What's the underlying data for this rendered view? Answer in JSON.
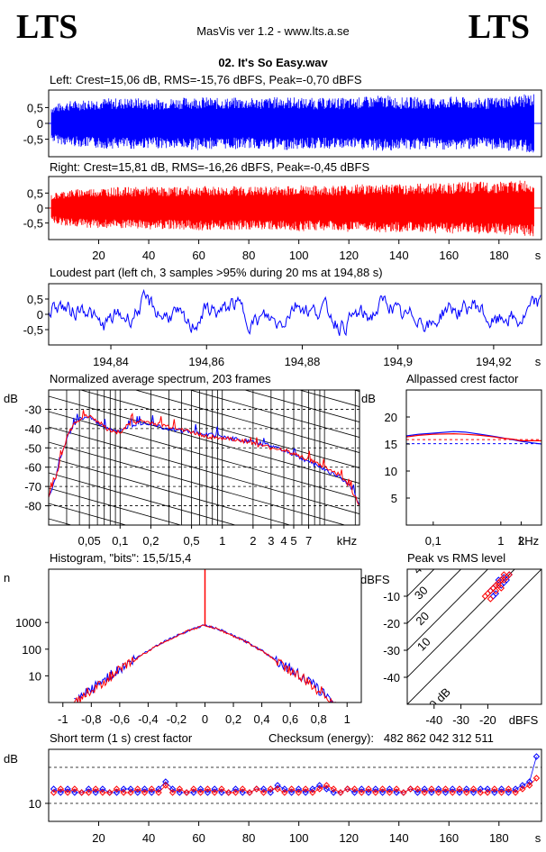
{
  "header": {
    "logo_left": "LTS",
    "logo_right": "LTS",
    "app_title": "MasVis ver 1.2 - www.lts.a.se",
    "file_name": "02. It's So Easy.wav"
  },
  "colors": {
    "left": "#0000ff",
    "right": "#ff0000",
    "grid": "#000000"
  },
  "chart_data": [
    {
      "id": "left_wave",
      "type": "area",
      "title": "Left: Crest=15,06 dB, RMS=-15,76 dBFS, Peak=-0,70 dBFS",
      "yticks": [
        "0,5",
        "0",
        "-0,5"
      ],
      "ytick_values": [
        0.5,
        0,
        -0.5
      ],
      "ylim": [
        -1,
        1
      ],
      "xlim": [
        0,
        197
      ],
      "series": [
        {
          "name": "Left",
          "envelope": [
            0.55,
            0.7,
            0.75,
            0.8,
            0.8,
            0.82,
            0.78,
            0.8,
            0.82,
            0.85,
            0.8,
            0.82,
            0.8,
            0.82,
            0.85,
            0.82,
            0.8,
            0.82,
            0.8,
            0.85,
            0.9,
            0.82,
            0.85,
            0.8,
            0.85,
            0.82,
            0.8,
            0.85,
            0.9,
            0.95
          ]
        }
      ]
    },
    {
      "id": "right_wave",
      "type": "area",
      "title": "Right: Crest=15,81 dB, RMS=-16,26 dBFS, Peak=-0,45 dBFS",
      "yticks": [
        "0,5",
        "0",
        "-0,5"
      ],
      "ytick_values": [
        0.5,
        0,
        -0.5
      ],
      "ylim": [
        -1,
        1
      ],
      "xlim": [
        0,
        197
      ],
      "xticks": [
        "20",
        "40",
        "60",
        "80",
        "100",
        "120",
        "140",
        "160",
        "180"
      ],
      "xtick_values": [
        20,
        40,
        60,
        80,
        100,
        120,
        140,
        160,
        180
      ],
      "xunit": "s",
      "series": [
        {
          "name": "Right",
          "envelope": [
            0.45,
            0.6,
            0.65,
            0.68,
            0.7,
            0.7,
            0.72,
            0.7,
            0.72,
            0.75,
            0.72,
            0.74,
            0.72,
            0.72,
            0.75,
            0.78,
            0.75,
            0.76,
            0.8,
            0.8,
            0.82,
            0.8,
            0.82,
            0.85,
            0.85,
            0.88,
            0.88,
            0.9,
            0.92,
            0.95
          ]
        }
      ]
    },
    {
      "id": "loudest",
      "type": "line",
      "title": "Loudest part (left  ch, 3 samples >95% during 20 ms at 194,88 s)",
      "yticks": [
        "0,5",
        "0",
        "-0,5"
      ],
      "ytick_values": [
        0.5,
        0,
        -0.5
      ],
      "ylim": [
        -1,
        1
      ],
      "xlim": [
        194.827,
        194.93
      ],
      "xticks": [
        "194,84",
        "194,86",
        "194,88",
        "194,9",
        "194,92"
      ],
      "xtick_values": [
        194.84,
        194.86,
        194.88,
        194.9,
        194.92
      ],
      "xunit": "s"
    },
    {
      "id": "spectrum",
      "type": "line",
      "title": "Normalized average spectrum, 203 frames",
      "ylabel": "dB",
      "ylim": [
        -90,
        -20
      ],
      "yticks": [
        "-30",
        "-40",
        "-50",
        "-60",
        "-70",
        "-80"
      ],
      "ytick_values": [
        -30,
        -40,
        -50,
        -60,
        -70,
        -80
      ],
      "xlim_khz": [
        0.02,
        22
      ],
      "xscale": "log",
      "xticks": [
        "0,05",
        "0,1",
        "0,2",
        "0,5",
        "1",
        "2",
        "3",
        "4",
        "5",
        "7"
      ],
      "xtick_values": [
        0.05,
        0.1,
        0.2,
        0.5,
        1,
        2,
        3,
        4,
        5,
        7
      ],
      "xunit": "kHz",
      "x": [
        0.02,
        0.022,
        0.025,
        0.03,
        0.035,
        0.04,
        0.05,
        0.06,
        0.07,
        0.08,
        0.1,
        0.12,
        0.15,
        0.2,
        0.25,
        0.3,
        0.4,
        0.5,
        0.7,
        1,
        1.5,
        2,
        3,
        4,
        5,
        7,
        10,
        14,
        18,
        22
      ],
      "series": [
        {
          "name": "L",
          "values": [
            -75,
            -70,
            -60,
            -45,
            -38,
            -35,
            -34,
            -37,
            -39,
            -40,
            -42,
            -39,
            -37,
            -37,
            -39,
            -40,
            -41,
            -42,
            -43,
            -44,
            -46,
            -47,
            -49,
            -51,
            -54,
            -57,
            -61,
            -65,
            -70,
            -79
          ]
        },
        {
          "name": "R",
          "values": [
            -75,
            -70,
            -60,
            -45,
            -38,
            -35,
            -33,
            -36,
            -39,
            -41,
            -42,
            -38,
            -36,
            -37,
            -38,
            -39,
            -40,
            -42,
            -44,
            -45,
            -46,
            -48,
            -50,
            -51,
            -53,
            -56,
            -60,
            -64,
            -71,
            -80
          ]
        }
      ]
    },
    {
      "id": "allpass",
      "type": "line",
      "title": "Allpassed crest factor",
      "ylabel": "dB",
      "ylim": [
        0,
        25
      ],
      "yticks": [
        "20",
        "15",
        "10",
        "5"
      ],
      "ytick_values": [
        20,
        15,
        10,
        5
      ],
      "xlim_khz": [
        0.04,
        4
      ],
      "xscale": "log",
      "xticks": [
        "0,1",
        "1",
        "2"
      ],
      "xtick_values": [
        0.1,
        1,
        2
      ],
      "xunit": "kHz",
      "x": [
        0.04,
        0.06,
        0.1,
        0.2,
        0.3,
        0.5,
        0.8,
        1,
        1.5,
        2,
        3,
        4
      ],
      "ref_lines": [
        15.06,
        15.81
      ],
      "series": [
        {
          "name": "L",
          "values": [
            16.5,
            16.8,
            17.0,
            17.3,
            17.2,
            16.8,
            16.4,
            16.2,
            15.8,
            15.5,
            15.2,
            15.0
          ]
        },
        {
          "name": "R",
          "values": [
            16.3,
            16.6,
            16.8,
            16.9,
            16.8,
            16.6,
            16.3,
            16.1,
            15.9,
            15.6,
            15.6,
            15.6
          ]
        }
      ]
    },
    {
      "id": "histogram",
      "type": "line",
      "title": "Histogram, \"bits\": 15,5/15,4",
      "ylabel": "n",
      "yscale": "log",
      "ylim": [
        1,
        100000
      ],
      "yticks": [
        "1000",
        "100",
        "10"
      ],
      "ytick_values": [
        1000,
        100,
        10
      ],
      "xlim": [
        -1.1,
        1.1
      ],
      "xticks": [
        "-1",
        "-0,8",
        "-0,6",
        "-0,4",
        "-0,2",
        "0",
        "0,2",
        "0,4",
        "0,6",
        "0,8",
        "1"
      ],
      "xtick_values": [
        -1,
        -0.8,
        -0.6,
        -0.4,
        -0.2,
        0,
        0.2,
        0.4,
        0.6,
        0.8,
        1
      ],
      "x": [
        -0.9,
        -0.85,
        -0.8,
        -0.75,
        -0.7,
        -0.6,
        -0.5,
        -0.4,
        -0.3,
        -0.2,
        -0.1,
        0,
        0.1,
        0.2,
        0.3,
        0.4,
        0.5,
        0.6,
        0.7,
        0.75,
        0.8,
        0.85,
        0.9
      ],
      "series": [
        {
          "name": "L",
          "values": [
            1,
            2,
            3,
            5,
            8,
            18,
            40,
            90,
            180,
            320,
            550,
            800,
            550,
            320,
            180,
            90,
            40,
            18,
            8,
            5,
            3,
            2,
            1
          ]
        },
        {
          "name": "R",
          "values": [
            1,
            2,
            3,
            4,
            7,
            16,
            38,
            85,
            175,
            310,
            540,
            790,
            540,
            310,
            175,
            85,
            38,
            16,
            7,
            4,
            3,
            2,
            1
          ]
        }
      ]
    },
    {
      "id": "peak_rms",
      "type": "scatter",
      "title": "Peak vs RMS level",
      "ylabel": "dBFS",
      "xlabel": "dBFS",
      "xlim": [
        -50,
        0
      ],
      "ylim": [
        -50,
        0
      ],
      "yticks": [
        "-10",
        "-20",
        "-30",
        "-40"
      ],
      "ytick_values": [
        -10,
        -20,
        -30,
        -40
      ],
      "xticks": [
        "-40",
        "-30",
        "-20"
      ],
      "xtick_values": [
        -40,
        -30,
        -20
      ],
      "crest_lines": [
        0,
        10,
        20,
        30,
        40
      ],
      "crest_labels": [
        "0 dB",
        "10",
        "20",
        "30",
        "40"
      ],
      "series": [
        {
          "name": "L",
          "x": [
            -19,
            -18,
            -17,
            -16,
            -15,
            -14,
            -13,
            -12,
            -16,
            -15,
            -14,
            -17,
            -18,
            -13
          ],
          "y": [
            -8,
            -7,
            -6,
            -5,
            -4,
            -3,
            -3,
            -2,
            -4,
            -6,
            -5,
            -9,
            -10,
            -4
          ]
        },
        {
          "name": "R",
          "x": [
            -20,
            -19,
            -18,
            -17,
            -16,
            -15,
            -14,
            -13,
            -12,
            -16,
            -14,
            -17,
            -19,
            -15,
            -21
          ],
          "y": [
            -9,
            -8,
            -7,
            -6,
            -5,
            -4,
            -4,
            -3,
            -2,
            -6,
            -2,
            -8,
            -11,
            -7,
            -10
          ]
        }
      ]
    },
    {
      "id": "crest_short",
      "type": "scatter",
      "title": "Short term (1 s) crest factor",
      "ylabel": "dB",
      "ylim": [
        5,
        25
      ],
      "yticks": [
        "10"
      ],
      "ytick_values": [
        10
      ],
      "ref_lines": [
        10,
        20
      ],
      "xlim": [
        0,
        197
      ],
      "xticks": [
        "20",
        "40",
        "60",
        "80",
        "100",
        "120",
        "140",
        "160",
        "180"
      ],
      "xtick_values": [
        20,
        40,
        60,
        80,
        100,
        120,
        140,
        160,
        180
      ],
      "xunit": "s",
      "series": [
        {
          "name": "L",
          "values": [
            14,
            13,
            14,
            13,
            13,
            14,
            13,
            14,
            13,
            13,
            14,
            14,
            13,
            14,
            13,
            14,
            16,
            14,
            13,
            13,
            13,
            14,
            13,
            14,
            13,
            13,
            14,
            13,
            13,
            14,
            14,
            13,
            15,
            14,
            13,
            14,
            13,
            14,
            15,
            14,
            13,
            13,
            14,
            13,
            14,
            13,
            14,
            13,
            14,
            13,
            13,
            14,
            13,
            14,
            13,
            14,
            13,
            14,
            13,
            14,
            13,
            14,
            14,
            13,
            14,
            13,
            14,
            15,
            16,
            23
          ]
        },
        {
          "name": "R",
          "values": [
            13,
            14,
            13,
            14,
            13,
            13,
            14,
            13,
            13,
            14,
            13,
            13,
            14,
            13,
            14,
            13,
            15,
            13,
            14,
            13,
            14,
            13,
            14,
            13,
            14,
            13,
            13,
            14,
            13,
            14,
            13,
            14,
            14,
            13,
            14,
            13,
            14,
            13,
            14,
            15,
            14,
            13,
            14,
            14,
            13,
            14,
            13,
            14,
            13,
            14,
            13,
            14,
            14,
            13,
            14,
            13,
            14,
            13,
            14,
            13,
            14,
            13,
            13,
            14,
            13,
            14,
            13,
            14,
            15,
            17
          ]
        }
      ]
    }
  ],
  "checksum": {
    "label": "Checksum (energy):",
    "value": "482 862 042 312 511"
  }
}
